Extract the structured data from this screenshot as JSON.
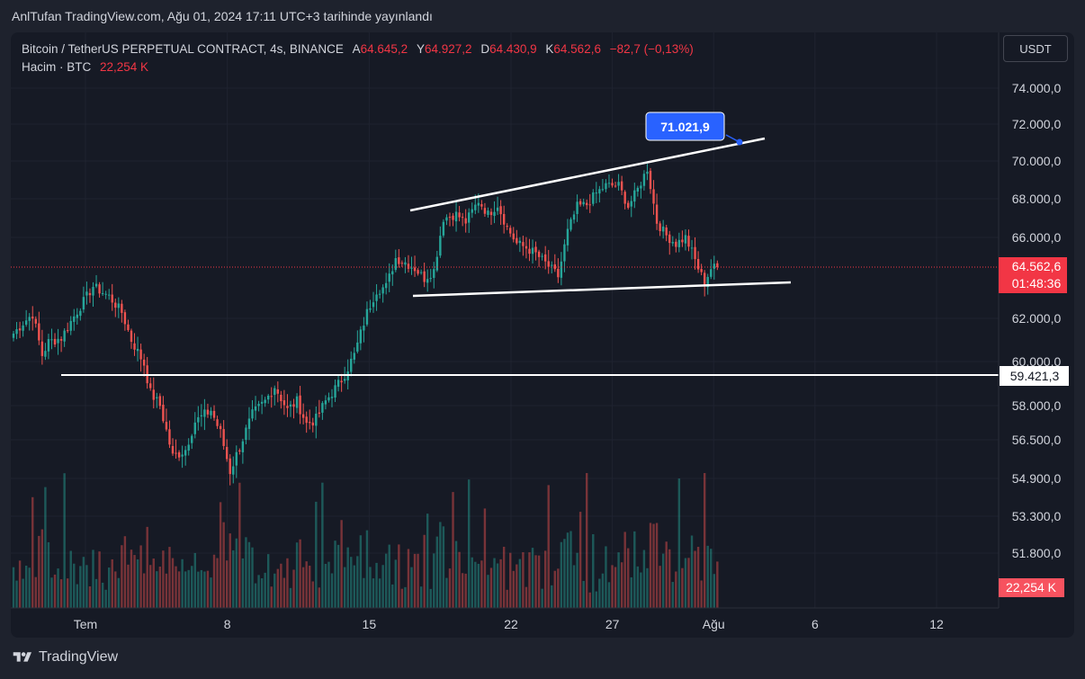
{
  "header": {
    "title": "AnlTufan TradingView.com, Ağu 01, 2024 17:11 UTC+3 tarihinde yayınlandı"
  },
  "legend": {
    "symbol": "Bitcoin / TetherUS PERPETUAL CONTRACT, 4s, BINANCE",
    "open_label": "A",
    "open": "64.645,2",
    "high_label": "Y",
    "high": "64.927,2",
    "low_label": "D",
    "low": "64.430,9",
    "close_label": "K",
    "close": "64.562,6",
    "change": "−82,7 (−0,13%)",
    "volume_label": "Hacim · BTC",
    "volume": "22,254 K"
  },
  "toolbar": {
    "currency": "USDT"
  },
  "price_badge": {
    "price": "64.562,6",
    "countdown": "01:48:36"
  },
  "volume_badge": "22,254 K",
  "support_badge": "59.421,3",
  "callout": "71.021,9",
  "footer": {
    "brand": "TradingView",
    "logo_icon": "tradingview-logo-icon"
  },
  "colors": {
    "up": "#26a69a",
    "down": "#ef5350",
    "bg": "#161a25",
    "callout": "#2962ff"
  },
  "chart_data": {
    "type": "candlestick",
    "symbol": "BTCUSDT.P",
    "timeframe": "4s",
    "y_axis_ticks": [
      "74.000,0",
      "72.000,0",
      "70.000,0",
      "68.000,0",
      "66.000,0",
      "62.000,0",
      "60.000,0",
      "58.000,0",
      "56.500,0",
      "54.900,0",
      "53.300,0",
      "51.800,0"
    ],
    "x_axis_ticks": [
      "Tem",
      "8",
      "15",
      "22",
      "27",
      "Ağu",
      "6",
      "12"
    ],
    "anchors": [
      [
        0,
        61300
      ],
      [
        3,
        61800
      ],
      [
        6,
        62200
      ],
      [
        9,
        60300
      ],
      [
        11,
        60900
      ],
      [
        15,
        61100
      ],
      [
        19,
        62100
      ],
      [
        25,
        63600
      ],
      [
        30,
        63100
      ],
      [
        34,
        62300
      ],
      [
        37,
        61000
      ],
      [
        41,
        59900
      ],
      [
        43,
        58600
      ],
      [
        46,
        58000
      ],
      [
        50,
        55800
      ],
      [
        54,
        56100
      ],
      [
        57,
        57300
      ],
      [
        62,
        57800
      ],
      [
        65,
        56800
      ],
      [
        68,
        55200
      ],
      [
        71,
        56200
      ],
      [
        75,
        57600
      ],
      [
        79,
        58200
      ],
      [
        82,
        58900
      ],
      [
        86,
        57800
      ],
      [
        89,
        58200
      ],
      [
        92,
        57200
      ],
      [
        95,
        57400
      ],
      [
        98,
        58200
      ],
      [
        103,
        59200
      ],
      [
        107,
        60300
      ],
      [
        111,
        62300
      ],
      [
        114,
        63400
      ],
      [
        117,
        63600
      ],
      [
        120,
        65000
      ],
      [
        123,
        64800
      ],
      [
        126,
        64500
      ],
      [
        129,
        64000
      ],
      [
        132,
        64400
      ],
      [
        135,
        67000
      ],
      [
        139,
        67200
      ],
      [
        142,
        66800
      ],
      [
        146,
        67900
      ],
      [
        149,
        67200
      ],
      [
        152,
        67700
      ],
      [
        155,
        66500
      ],
      [
        158,
        65700
      ],
      [
        161,
        65500
      ],
      [
        164,
        65200
      ],
      [
        168,
        64600
      ],
      [
        171,
        64100
      ],
      [
        174,
        66300
      ],
      [
        177,
        67600
      ],
      [
        180,
        67700
      ],
      [
        183,
        68300
      ],
      [
        186,
        68700
      ],
      [
        190,
        68700
      ],
      [
        193,
        67600
      ],
      [
        196,
        68500
      ],
      [
        199,
        69600
      ],
      [
        202,
        66800
      ],
      [
        205,
        66100
      ],
      [
        208,
        65700
      ],
      [
        211,
        66000
      ],
      [
        213,
        65300
      ],
      [
        215,
        64500
      ],
      [
        217,
        63800
      ],
      [
        219,
        64500
      ],
      [
        221,
        64560
      ]
    ],
    "volume_peak": "69.000,0",
    "support_line": "59.421,3",
    "channel_upper": [
      [
        "Tem 17",
        "67.400,0"
      ],
      [
        "Ağu 02",
        "71.021,9"
      ]
    ],
    "channel_lower": [
      [
        "Tem 17",
        "63.200,0"
      ],
      [
        "Ağu 04",
        "63.400,0"
      ]
    ],
    "current_price": "64.562,6"
  }
}
